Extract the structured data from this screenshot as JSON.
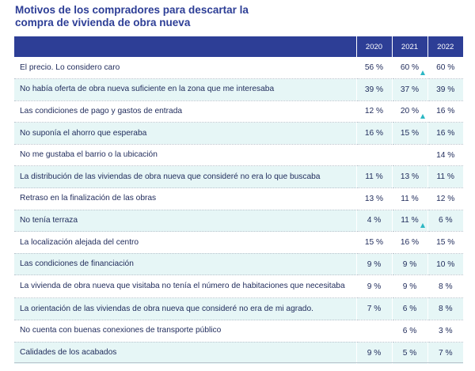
{
  "chart_data": {
    "type": "table",
    "title_lines": [
      "Motivos de los compradores para descartar la",
      "compra de vivienda de obra nueva"
    ],
    "years": [
      "2020",
      "2021",
      "2022"
    ],
    "rows": [
      {
        "label": "El precio. Lo considero caro",
        "values": [
          "56 %",
          "60 %",
          "60 %"
        ],
        "up": [
          false,
          true,
          false
        ]
      },
      {
        "label": "No había oferta de obra nueva suficiente en la zona que me interesaba",
        "values": [
          "39 %",
          "37 %",
          "39 %"
        ],
        "up": [
          false,
          false,
          false
        ]
      },
      {
        "label": "Las condiciones de pago y gastos de entrada",
        "values": [
          "12 %",
          "20 %",
          "16 %"
        ],
        "up": [
          false,
          true,
          false
        ]
      },
      {
        "label": "No suponía el ahorro que esperaba",
        "values": [
          "16 %",
          "15 %",
          "16 %"
        ],
        "up": [
          false,
          false,
          false
        ]
      },
      {
        "label": "No me gustaba el barrio o la ubicación",
        "values": [
          "",
          "",
          "14 %"
        ],
        "up": [
          false,
          false,
          false
        ]
      },
      {
        "label": "La distribución de las viviendas de obra nueva que consideré no era lo que buscaba",
        "values": [
          "11 %",
          "13 %",
          "11 %"
        ],
        "up": [
          false,
          false,
          false
        ]
      },
      {
        "label": "Retraso en la finalización de las obras",
        "values": [
          "13 %",
          "11 %",
          "12 %"
        ],
        "up": [
          false,
          false,
          false
        ]
      },
      {
        "label": "No tenía terraza",
        "values": [
          "4 %",
          "11 %",
          "6 %"
        ],
        "up": [
          false,
          true,
          false
        ]
      },
      {
        "label": "La localización alejada del centro",
        "values": [
          "15 %",
          "16 %",
          "15 %"
        ],
        "up": [
          false,
          false,
          false
        ]
      },
      {
        "label": "Las condiciones de financiación",
        "values": [
          "9 %",
          "9 %",
          "10 %"
        ],
        "up": [
          false,
          false,
          false
        ]
      },
      {
        "label": "La vivienda de obra nueva que visitaba no tenía el número de habitaciones que necesitaba",
        "values": [
          "9 %",
          "9 %",
          "8 %"
        ],
        "up": [
          false,
          false,
          false
        ]
      },
      {
        "label": "La orientación de las viviendas de obra nueva que consideré no era de mi agrado.",
        "values": [
          "7 %",
          "6 %",
          "8 %"
        ],
        "up": [
          false,
          false,
          false
        ]
      },
      {
        "label": "No cuenta con buenas conexiones de transporte público",
        "values": [
          "",
          "6 %",
          "3 %"
        ],
        "up": [
          false,
          false,
          false
        ]
      },
      {
        "label": "Calidades de los acabados",
        "values": [
          "9 %",
          "5 %",
          "7 %"
        ],
        "up": [
          false,
          false,
          false
        ]
      }
    ]
  },
  "colors": {
    "header_bg": "#2d3e96",
    "title": "#2d3e96",
    "row_alt_bg": "#e6f6f6",
    "up_marker": "#2bb7c4"
  }
}
